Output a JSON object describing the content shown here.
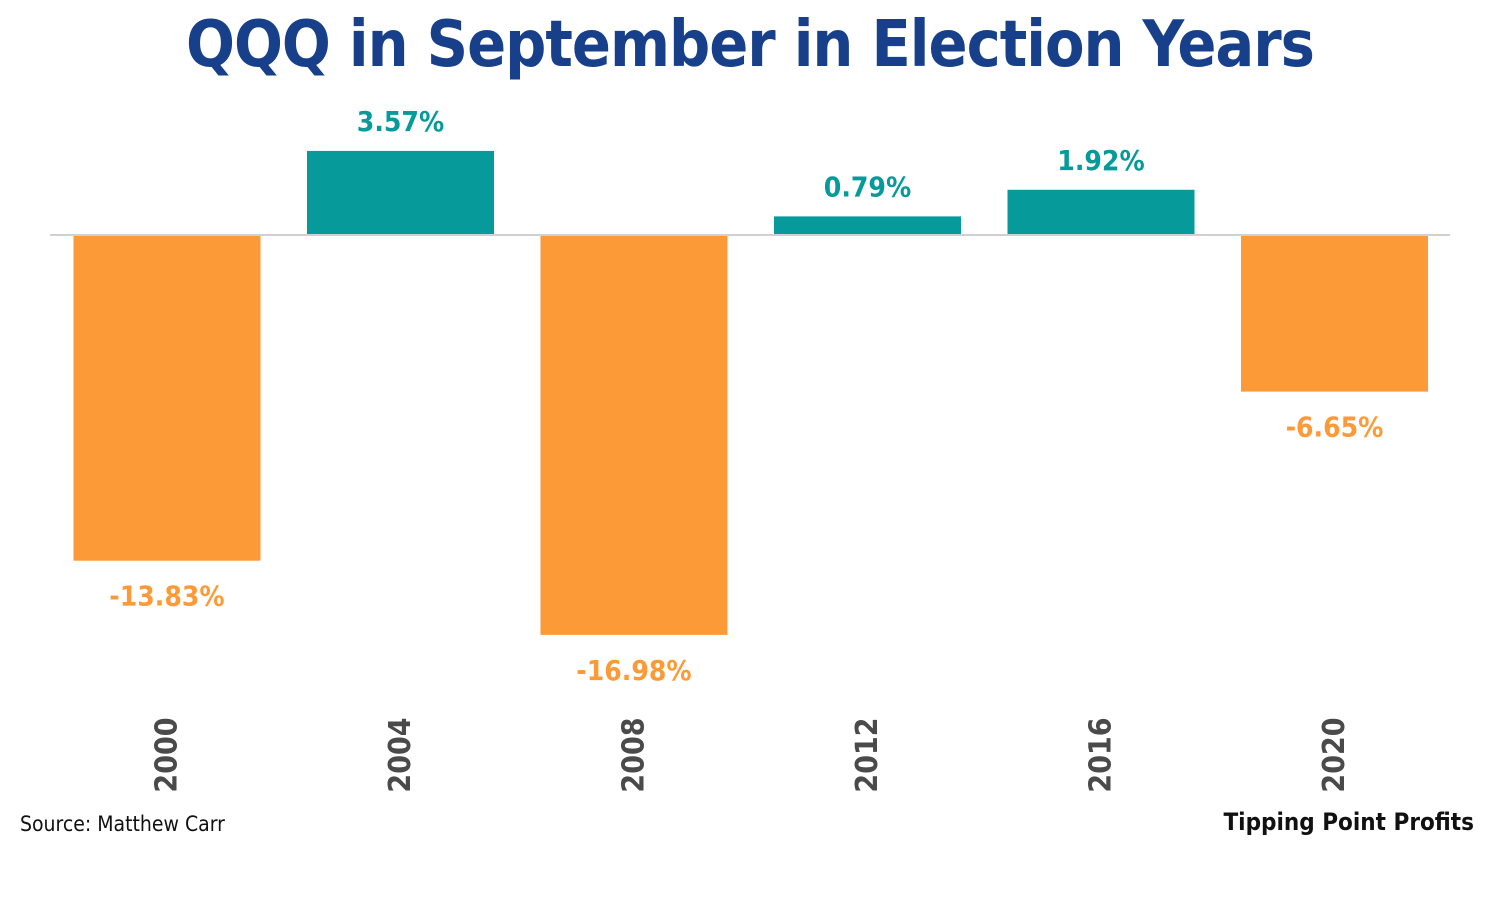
{
  "chart_data": {
    "type": "bar",
    "title": "QQQ in September in Election Years",
    "categories": [
      "2000",
      "2004",
      "2008",
      "2012",
      "2016",
      "2020"
    ],
    "values": [
      -13.83,
      3.57,
      -16.98,
      0.79,
      1.92,
      -6.65
    ],
    "data_labels": [
      "-13.83%",
      "3.57%",
      "-16.98%",
      "0.79%",
      "1.92%",
      "-6.65%"
    ],
    "xlabel": "",
    "ylabel": "",
    "grid": false,
    "colors": {
      "positive": "#069a9a",
      "negative": "#fd9a38",
      "baseline": "#d0d0d0"
    }
  },
  "footer": {
    "source": "Source: Matthew Carr",
    "brand": "Tipping Point Profits"
  }
}
